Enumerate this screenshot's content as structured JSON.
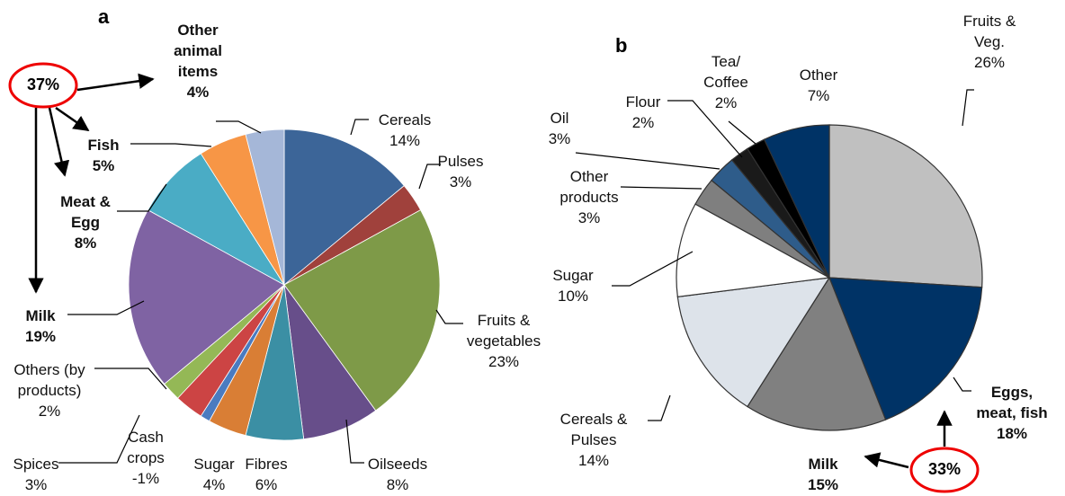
{
  "chart_data": [
    {
      "type": "pie",
      "label": "a",
      "annotation": "37%",
      "categories": [
        "Cereals",
        "Pulses",
        "Fruits & vegetables",
        "Oilseeds",
        "Fibres",
        "Sugar",
        "Cash crops",
        "Spices",
        "Others (by products)",
        "Milk",
        "Meat & Egg",
        "Fish",
        "Other animal items"
      ],
      "values": [
        14,
        3,
        23,
        8,
        6,
        4,
        -1,
        3,
        2,
        19,
        8,
        5,
        4
      ],
      "value_labels": [
        "14%",
        "3%",
        "23%",
        "8%",
        "6%",
        "4%",
        "-1%",
        "3%",
        "2%",
        "19%",
        "8%",
        "5%",
        "4%"
      ],
      "colors": [
        "#3c6598",
        "#a0413c",
        "#7e9a48",
        "#674e8a",
        "#3b8fa4",
        "#d97e35",
        "#4a7bc0",
        "#cc4444",
        "#94b856",
        "#7f63a3",
        "#4aacc5",
        "#f79646",
        "#a5b7d8"
      ]
    },
    {
      "type": "pie",
      "label": "b",
      "annotation": "33%",
      "categories": [
        "Fruits & Veg.",
        "Eggs, meat, fish",
        "Milk",
        "Cereals & Pulses",
        "Sugar",
        "Other products",
        "Oil",
        "Flour",
        "Tea/ Coffee",
        "Other"
      ],
      "values": [
        26,
        18,
        15,
        14,
        10,
        3,
        3,
        2,
        2,
        7
      ],
      "value_labels": [
        "26%",
        "18%",
        "15%",
        "14%",
        "10%",
        "3%",
        "3%",
        "2%",
        "2%",
        "7%"
      ],
      "colors": [
        "#c0c0c0",
        "#003366",
        "#808080",
        "#dde3ea",
        "#ffffff",
        "#7f7f7f",
        "#2e5c8a",
        "#1a1a1a",
        "#000000",
        "#003366"
      ]
    }
  ]
}
